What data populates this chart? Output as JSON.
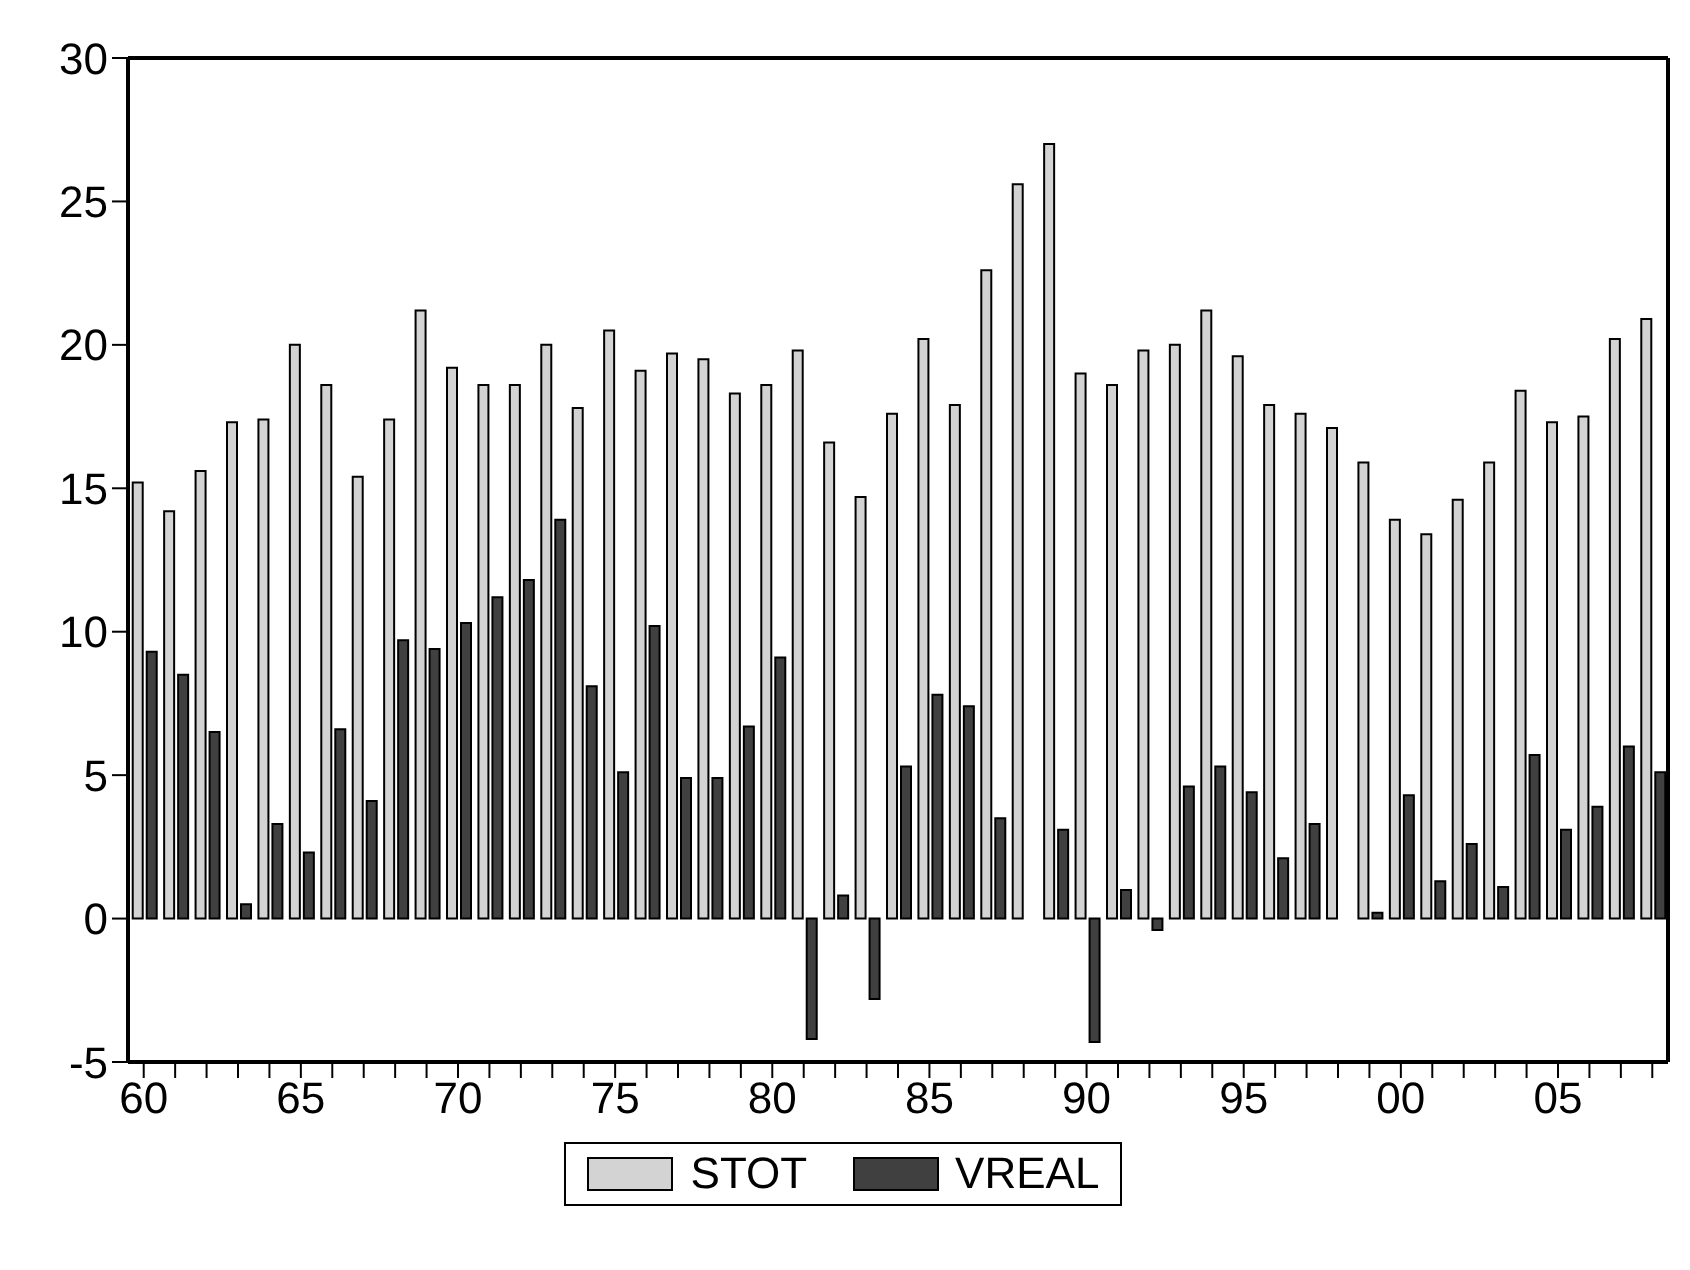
{
  "chart_data": {
    "type": "bar",
    "categories": [
      "60",
      null,
      null,
      null,
      null,
      "65",
      null,
      null,
      null,
      null,
      "70",
      null,
      null,
      null,
      null,
      "75",
      null,
      null,
      null,
      null,
      "80",
      null,
      null,
      null,
      null,
      "85",
      null,
      null,
      null,
      null,
      "90",
      null,
      null,
      null,
      null,
      "95",
      null,
      null,
      null,
      null,
      "00",
      null,
      null,
      null,
      null,
      "05",
      null,
      null,
      null
    ],
    "series": [
      {
        "name": "STOT",
        "color": "#d3d3d3",
        "values": [
          15.2,
          14.2,
          15.6,
          17.3,
          17.4,
          20.0,
          18.6,
          15.4,
          17.4,
          21.2,
          19.2,
          18.6,
          18.6,
          20.0,
          17.8,
          20.5,
          19.1,
          19.7,
          19.5,
          18.3,
          18.6,
          19.8,
          16.6,
          14.7,
          17.6,
          20.2,
          17.9,
          22.6,
          25.6,
          27.0,
          19.0,
          18.6,
          19.8,
          20.0,
          21.2,
          19.6,
          17.9,
          17.6,
          17.1,
          15.9,
          13.9,
          13.4,
          14.6,
          15.9,
          18.4,
          17.3,
          17.5,
          20.2,
          20.9
        ]
      },
      {
        "name": "VREAL",
        "color": "#404040",
        "values": [
          9.3,
          8.5,
          6.5,
          0.5,
          3.3,
          2.3,
          6.6,
          4.1,
          9.7,
          9.4,
          10.3,
          11.2,
          11.8,
          13.9,
          8.1,
          5.1,
          10.2,
          4.9,
          4.9,
          6.7,
          9.1,
          -4.2,
          0.8,
          -2.8,
          5.3,
          7.8,
          7.4,
          3.5,
          null,
          3.1,
          -4.3,
          1.0,
          -0.4,
          4.6,
          5.3,
          4.4,
          2.1,
          3.3,
          null,
          0.2,
          4.3,
          1.3,
          2.6,
          1.1,
          5.7,
          3.1,
          3.9,
          6.0,
          5.1
        ]
      }
    ],
    "ylim": [
      -5,
      30
    ],
    "yticks": [
      -5,
      0,
      5,
      10,
      15,
      20,
      25,
      30
    ],
    "grid": false,
    "legend": "bottom"
  }
}
